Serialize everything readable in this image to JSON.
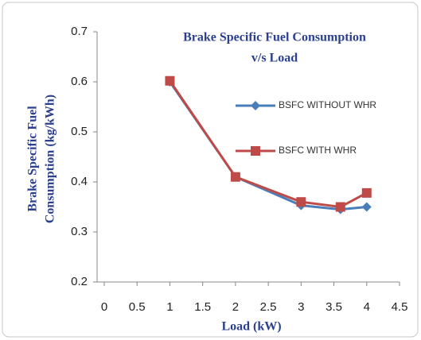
{
  "chart_data": {
    "type": "line",
    "title": [
      "Brake Specific Fuel Consumption",
      "v/s Load"
    ],
    "y_label": [
      "Brake Specific Fuel",
      "Consumption (kg/kWh)"
    ],
    "x_label": "Load (kW)",
    "x": [
      1,
      2,
      3,
      3.6,
      4
    ],
    "series": [
      {
        "name": "BSFC WITHOUT WHR",
        "color": "#4a7ebb",
        "marker": "diamond",
        "values": [
          0.6,
          0.41,
          0.353,
          0.345,
          0.35
        ]
      },
      {
        "name": "BSFC WITH WHR",
        "color": "#be4b48",
        "marker": "square",
        "values": [
          0.602,
          0.41,
          0.36,
          0.35,
          0.378
        ]
      }
    ],
    "xlim": [
      0,
      4.5
    ],
    "xticks": [
      0,
      0.5,
      1,
      1.5,
      2,
      2.5,
      3,
      3.5,
      4,
      4.5
    ],
    "ylim": [
      0.2,
      0.7
    ],
    "yticks": [
      0.2,
      0.3,
      0.4,
      0.5,
      0.6,
      0.7
    ],
    "grid": false
  }
}
